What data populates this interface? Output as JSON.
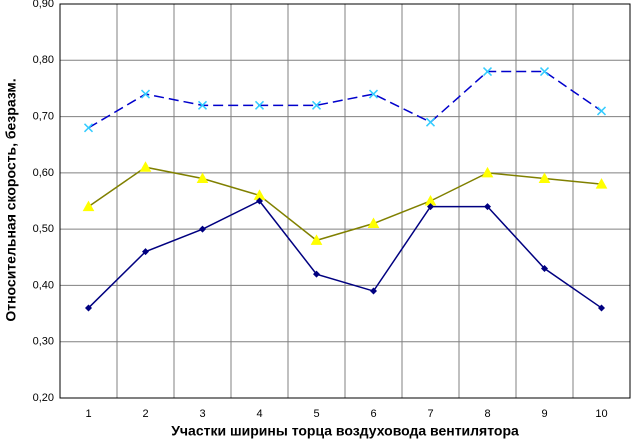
{
  "chart_data": {
    "type": "line",
    "x_label": "Участки ширины торца воздуховода вентилятора",
    "y_label": "Относительная скорость, безразм.",
    "categories": [
      "1",
      "2",
      "3",
      "4",
      "5",
      "6",
      "7",
      "8",
      "9",
      "10"
    ],
    "series": [
      {
        "color": "#0000cc",
        "marker_color": "#33ccff",
        "marker": "x",
        "dash": true,
        "values": [
          0.68,
          0.74,
          0.72,
          0.72,
          0.72,
          0.74,
          0.69,
          0.78,
          0.78,
          0.71
        ]
      },
      {
        "color": "#808000",
        "marker_color": "#ffff00",
        "marker": "triangle",
        "dash": false,
        "values": [
          0.54,
          0.61,
          0.59,
          0.56,
          0.48,
          0.51,
          0.55,
          0.6,
          0.59,
          0.58
        ]
      },
      {
        "color": "#000080",
        "marker_color": "#000080",
        "marker": "diamond",
        "dash": false,
        "values": [
          0.36,
          0.46,
          0.5,
          0.55,
          0.42,
          0.39,
          0.54,
          0.54,
          0.43,
          0.36
        ]
      }
    ],
    "ylim": [
      0.2,
      0.9
    ],
    "yticks": [
      {
        "value": 0.2,
        "label": "0,20"
      },
      {
        "value": 0.3,
        "label": "0,30"
      },
      {
        "value": 0.4,
        "label": "0,40"
      },
      {
        "value": 0.5,
        "label": "0,50"
      },
      {
        "value": 0.6,
        "label": "0,60"
      },
      {
        "value": 0.7,
        "label": "0,70"
      },
      {
        "value": 0.8,
        "label": "0,80"
      },
      {
        "value": 0.9,
        "label": "0,90"
      }
    ],
    "grid": true
  }
}
